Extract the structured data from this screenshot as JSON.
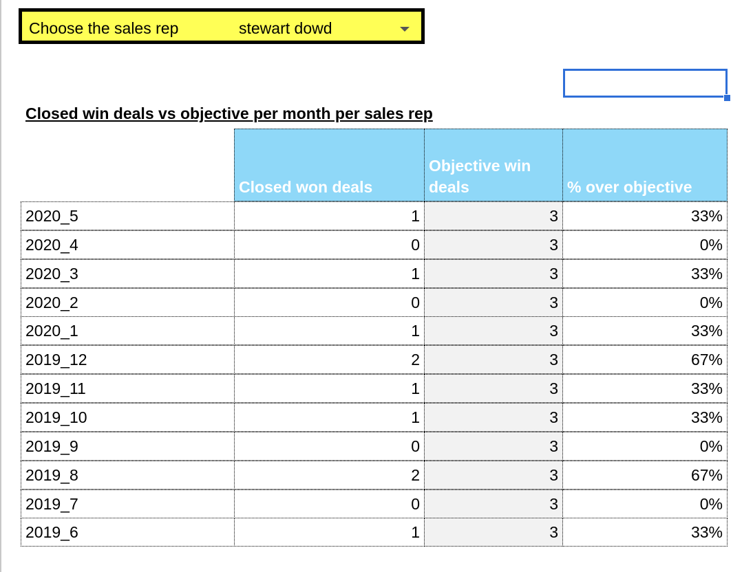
{
  "selector": {
    "label": "Choose the sales rep",
    "value": "stewart dowd",
    "background": "#ffff56"
  },
  "title": "Closed win deals vs objective per month per sales rep",
  "table": {
    "headers": {
      "closed": "Closed won deals",
      "objective": "Objective win deals",
      "pct": "% over objective"
    },
    "header_background": "#8fd8f8",
    "rows": [
      {
        "month": "2020_5",
        "closed": "1",
        "objective": "3",
        "pct": "33%"
      },
      {
        "month": "2020_4",
        "closed": "0",
        "objective": "3",
        "pct": "0%"
      },
      {
        "month": "2020_3",
        "closed": "1",
        "objective": "3",
        "pct": "33%"
      },
      {
        "month": "2020_2",
        "closed": "0",
        "objective": "3",
        "pct": "0%"
      },
      {
        "month": "2020_1",
        "closed": "1",
        "objective": "3",
        "pct": "33%"
      },
      {
        "month": "2019_12",
        "closed": "2",
        "objective": "3",
        "pct": "67%"
      },
      {
        "month": "2019_11",
        "closed": "1",
        "objective": "3",
        "pct": "33%"
      },
      {
        "month": "2019_10",
        "closed": "1",
        "objective": "3",
        "pct": "33%"
      },
      {
        "month": "2019_9",
        "closed": "0",
        "objective": "3",
        "pct": "0%"
      },
      {
        "month": "2019_8",
        "closed": "2",
        "objective": "3",
        "pct": "67%"
      },
      {
        "month": "2019_7",
        "closed": "0",
        "objective": "3",
        "pct": "0%"
      },
      {
        "month": "2019_6",
        "closed": "1",
        "objective": "3",
        "pct": "33%"
      }
    ]
  },
  "selection_color": "#2f6fd8"
}
